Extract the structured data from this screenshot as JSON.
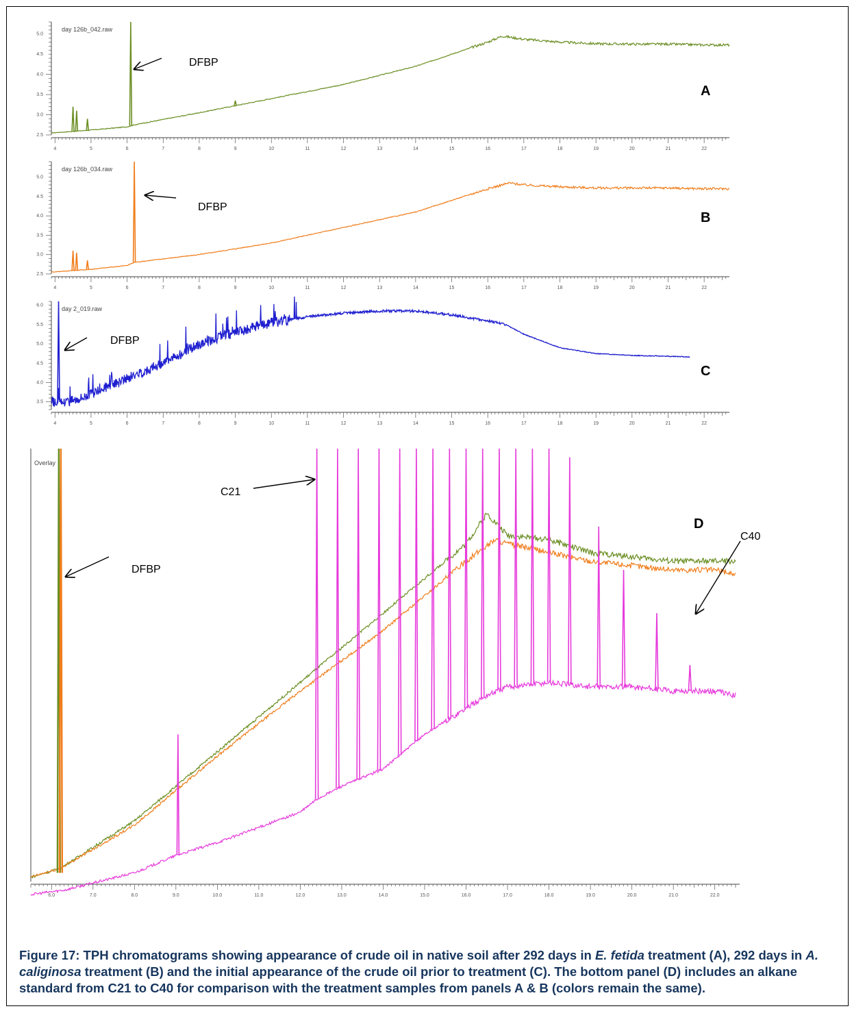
{
  "chart_data": [
    {
      "panel": "A",
      "type": "line",
      "file_label": "day 126b_042.raw",
      "color": "#6b8e23",
      "xlim": [
        3.9,
        22.7
      ],
      "ylim": [
        2.5,
        5.3
      ],
      "x_ticks": [
        "4",
        "5",
        "6",
        "7",
        "8",
        "9",
        "10",
        "11",
        "12",
        "13",
        "14",
        "15",
        "16",
        "17",
        "18",
        "19",
        "20",
        "21",
        "22"
      ],
      "y_ticks": [
        "2.5",
        "3.0",
        "3.5",
        "4.0",
        "4.5",
        "5.0"
      ],
      "series": [
        {
          "x": [
            3.9,
            5.0,
            6.0,
            6.2,
            8,
            10,
            12,
            14,
            15,
            16,
            16.4,
            17,
            18,
            19,
            20,
            21,
            22,
            22.7
          ],
          "y": [
            2.55,
            2.62,
            2.7,
            2.75,
            3.05,
            3.4,
            3.75,
            4.2,
            4.5,
            4.8,
            4.95,
            4.87,
            4.8,
            4.76,
            4.75,
            4.75,
            4.73,
            4.73
          ]
        }
      ],
      "peaks": [
        {
          "x": 4.5,
          "y": 3.2
        },
        {
          "x": 4.6,
          "y": 3.1
        },
        {
          "x": 4.9,
          "y": 2.9
        },
        {
          "x": 6.1,
          "y": 5.3
        },
        {
          "x": 9.0,
          "y": 3.35
        }
      ],
      "annotation": "DFBP"
    },
    {
      "panel": "B",
      "type": "line",
      "file_label": "day 126b_034.raw",
      "color": "#f07d1b",
      "xlim": [
        3.9,
        22.7
      ],
      "ylim": [
        2.5,
        5.4
      ],
      "x_ticks": [
        "4",
        "5",
        "6",
        "7",
        "8",
        "9",
        "10",
        "11",
        "12",
        "13",
        "14",
        "15",
        "16",
        "17",
        "18",
        "19",
        "20",
        "21",
        "22"
      ],
      "y_ticks": [
        "2.5",
        "3.0",
        "3.5",
        "4.0",
        "4.5",
        "5.0"
      ],
      "series": [
        {
          "x": [
            3.9,
            5.0,
            6.0,
            6.2,
            8,
            10,
            12,
            14,
            15,
            16,
            16.6,
            17,
            18,
            19,
            20,
            21,
            22,
            22.7
          ],
          "y": [
            2.55,
            2.62,
            2.72,
            2.8,
            3.0,
            3.3,
            3.7,
            4.1,
            4.4,
            4.7,
            4.85,
            4.8,
            4.75,
            4.72,
            4.72,
            4.72,
            4.7,
            4.7
          ]
        }
      ],
      "peaks": [
        {
          "x": 4.5,
          "y": 3.1
        },
        {
          "x": 4.6,
          "y": 3.05
        },
        {
          "x": 4.9,
          "y": 2.85
        },
        {
          "x": 6.2,
          "y": 5.4
        }
      ],
      "annotation": "DFBP"
    },
    {
      "panel": "C",
      "type": "line",
      "file_label": "day 2_019.raw",
      "color": "#1f1fd0",
      "xlim": [
        3.9,
        22.7
      ],
      "ylim": [
        3.3,
        6.1
      ],
      "x_ticks": [
        "4",
        "5",
        "6",
        "7",
        "8",
        "9",
        "10",
        "11",
        "12",
        "13",
        "14",
        "15",
        "16",
        "17",
        "18",
        "19",
        "20",
        "21",
        "22"
      ],
      "y_ticks": [
        "3.5",
        "4.0",
        "4.5",
        "5.0",
        "5.5",
        "6.0"
      ],
      "series": [
        {
          "x": [
            3.9,
            4.3,
            5,
            6,
            7,
            8,
            9,
            10,
            11,
            12,
            13,
            14,
            15,
            16,
            16.5,
            17,
            18,
            19,
            20,
            21,
            21.6
          ],
          "y": [
            3.5,
            3.5,
            3.7,
            4.1,
            4.5,
            5.0,
            5.3,
            5.55,
            5.7,
            5.8,
            5.85,
            5.85,
            5.75,
            5.6,
            5.5,
            5.25,
            4.9,
            4.75,
            4.7,
            4.68,
            4.66
          ]
        }
      ],
      "peaks": [
        {
          "x": 4.1,
          "y": 6.1
        }
      ],
      "annotation": "DFBP"
    },
    {
      "panel": "D",
      "type": "line",
      "file_label": "Overlay",
      "xlim": [
        5.5,
        22.6
      ],
      "ylim": [
        0,
        100
      ],
      "x_ticks": [
        "6.0",
        "7.0",
        "8.0",
        "9.0",
        "10.0",
        "11.0",
        "12.0",
        "13.0",
        "14.0",
        "15.0",
        "16.0",
        "17.0",
        "18.0",
        "19.0",
        "20.0",
        "21.0",
        "22.0"
      ],
      "series": [
        {
          "color": "#6b8e23",
          "x": [
            5.5,
            6.2,
            8,
            10,
            12,
            14,
            15,
            16,
            16.5,
            17,
            18,
            19,
            20,
            21,
            22,
            22.5
          ],
          "y": [
            1,
            3,
            14,
            30,
            46,
            62,
            70,
            78,
            85,
            80,
            79,
            76,
            75,
            74,
            74,
            74
          ]
        },
        {
          "color": "#f07d1b",
          "x": [
            5.5,
            6.2,
            8,
            10,
            12,
            14,
            15,
            16,
            16.7,
            17,
            18,
            19,
            20,
            21,
            22,
            22.5
          ],
          "y": [
            1,
            3,
            13,
            29,
            44,
            58,
            66,
            74,
            79,
            78,
            76,
            74,
            73,
            72,
            72,
            71
          ]
        },
        {
          "color": "#e63adb",
          "x": [
            5.5,
            6.3,
            8,
            9.0,
            10,
            12,
            12.4,
            13,
            14,
            15,
            16,
            16.5,
            17,
            18,
            19,
            20,
            21,
            22,
            22.5
          ],
          "y": [
            -3,
            -2,
            2,
            6,
            9,
            16,
            19,
            22,
            26,
            34,
            40,
            43,
            45,
            46,
            45,
            45,
            44,
            44,
            43
          ]
        }
      ],
      "standard_peaks": [
        {
          "x": 12.4,
          "y": 120
        },
        {
          "x": 12.9,
          "y": 120
        },
        {
          "x": 13.4,
          "y": 120
        },
        {
          "x": 13.9,
          "y": 120
        },
        {
          "x": 14.4,
          "y": 120
        },
        {
          "x": 14.8,
          "y": 120
        },
        {
          "x": 15.2,
          "y": 120
        },
        {
          "x": 15.6,
          "y": 120
        },
        {
          "x": 16.0,
          "y": 120
        },
        {
          "x": 16.4,
          "y": 120
        },
        {
          "x": 16.8,
          "y": 120
        },
        {
          "x": 17.2,
          "y": 120
        },
        {
          "x": 17.6,
          "y": 120
        },
        {
          "x": 18.0,
          "y": 100
        },
        {
          "x": 18.5,
          "y": 98
        },
        {
          "x": 19.2,
          "y": 82
        },
        {
          "x": 19.8,
          "y": 72
        },
        {
          "x": 20.6,
          "y": 62
        },
        {
          "x": 21.4,
          "y": 50
        }
      ],
      "dfbp_peak": {
        "x": 6.2,
        "y": 120
      },
      "annotations": [
        {
          "text": "C21"
        },
        {
          "text": "C40"
        },
        {
          "text": "DFBP"
        }
      ]
    }
  ],
  "panel_letters": [
    "A",
    "B",
    "C",
    "D"
  ],
  "caption": {
    "part1": "Figure 17: TPH chromatograms showing appearance of crude oil in native soil after 292 days in ",
    "em1": "E. fetida",
    "part2": " treatment (A), 292 days in ",
    "em2": "A. caliginosa",
    "part3": " treatment (B) and the initial appearance of the crude oil prior to treatment (C).  The bottom panel (D) includes an alkane standard from C21 to C40 for comparison with the treatment samples from panels A & B (colors remain the same)."
  }
}
